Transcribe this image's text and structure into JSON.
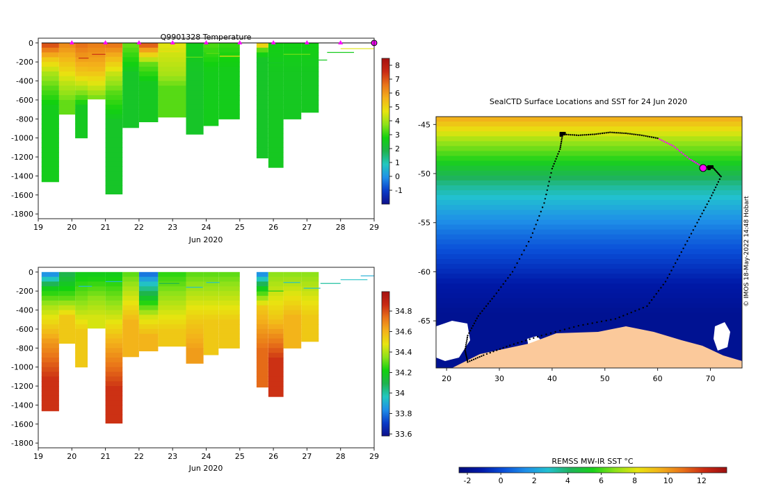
{
  "colors": {
    "temp_scale": [
      "#0d0f8a",
      "#0a3cc8",
      "#1f8fe8",
      "#22c7c0",
      "#1fb34f",
      "#12d10f",
      "#8ee219",
      "#e8e40f",
      "#f4b21a",
      "#e97419",
      "#c92a13",
      "#a51110"
    ],
    "sal_scale": [
      "#0d0f8a",
      "#0a3cc8",
      "#1f8fe8",
      "#22c7c0",
      "#1fb34f",
      "#12d10f",
      "#8ee219",
      "#e8e40f",
      "#f4b21a",
      "#e97419",
      "#c92a13",
      "#a51110"
    ],
    "sst_scale": [
      "#000a7a",
      "#0019a8",
      "#0a4fd8",
      "#1f8fe8",
      "#22c0d0",
      "#1fb35a",
      "#19d11a",
      "#8ee219",
      "#e8e40f",
      "#f2b21a",
      "#e97419",
      "#c92a13",
      "#9c0f10"
    ],
    "marker": "#ff00ff",
    "land": "#fbc99b",
    "ice": "#ffffff"
  },
  "chart_data": [
    {
      "type": "heatmap",
      "title": "Q9901328  Temperature",
      "xlabel": "Jun 2020",
      "ylabel": "",
      "x_ticks": [
        "19",
        "20",
        "21",
        "22",
        "23",
        "24",
        "25",
        "26",
        "27",
        "28",
        "29"
      ],
      "y_ticks": [
        "0",
        "-200",
        "-400",
        "-600",
        "-800",
        "-1000",
        "-1200",
        "-1400",
        "-1600",
        "-1800"
      ],
      "xlim": [
        19,
        29
      ],
      "ylim": [
        -1850,
        50
      ],
      "colorbar": {
        "ticks": [
          "-1",
          "0",
          "1",
          "2",
          "3",
          "4",
          "5",
          "6",
          "7",
          "8"
        ],
        "range": [
          -2,
          8.5
        ]
      },
      "profile_markers_day": [
        20,
        21,
        22,
        23,
        24,
        25,
        26,
        27,
        28
      ],
      "profiles": [
        {
          "x0": 19.1,
          "x1": 19.62,
          "depth": 1460,
          "layers": [
            [
              0,
              7.0
            ],
            [
              150,
              5.2
            ],
            [
              300,
              4.0
            ],
            [
              450,
              3.3
            ],
            [
              650,
              2.6
            ]
          ]
        },
        {
          "x0": 19.62,
          "x1": 20.1,
          "depth": 750,
          "layers": [
            [
              0,
              6.2
            ],
            [
              250,
              5.0
            ],
            [
              400,
              4.2
            ],
            [
              600,
              3.4
            ]
          ]
        },
        {
          "x0": 20.1,
          "x1": 20.47,
          "depth": 1000,
          "layers": [
            [
              0,
              6.6
            ],
            [
              300,
              5.2
            ],
            [
              450,
              4.0
            ],
            [
              650,
              2.5
            ]
          ]
        },
        {
          "x0": 20.47,
          "x1": 21.0,
          "depth": 590,
          "layers": [
            [
              0,
              6.4
            ],
            [
              250,
              5.5
            ],
            [
              400,
              4.6
            ],
            [
              550,
              3.6
            ]
          ]
        },
        {
          "x0": 21.0,
          "x1": 21.51,
          "depth": 1590,
          "layers": [
            [
              0,
              6.5
            ],
            [
              300,
              4.3
            ],
            [
              500,
              3.3
            ],
            [
              800,
              2.4
            ]
          ]
        },
        {
          "x0": 21.51,
          "x1": 22.0,
          "depth": 890,
          "layers": [
            [
              0,
              3.4
            ],
            [
              300,
              2.4
            ]
          ]
        },
        {
          "x0": 22.0,
          "x1": 22.57,
          "depth": 830,
          "layers": [
            [
              0,
              6.8
            ],
            [
              100,
              5.0
            ],
            [
              200,
              3.4
            ],
            [
              400,
              2.5
            ]
          ]
        },
        {
          "x0": 22.57,
          "x1": 23.4,
          "depth": 780,
          "layers": [
            [
              0,
              4.6
            ],
            [
              300,
              4.0
            ],
            [
              450,
              3.3
            ]
          ]
        },
        {
          "x0": 23.4,
          "x1": 23.92,
          "depth": 960,
          "layers": [
            [
              0,
              2.6
            ],
            [
              300,
              2.4
            ]
          ]
        },
        {
          "x0": 23.92,
          "x1": 24.37,
          "depth": 870,
          "layers": [
            [
              0,
              3.2
            ],
            [
              270,
              2.6
            ]
          ]
        },
        {
          "x0": 24.37,
          "x1": 25.0,
          "depth": 800,
          "layers": [
            [
              0,
              3.0
            ],
            [
              260,
              2.6
            ]
          ]
        },
        {
          "x0": 25.5,
          "x1": 25.85,
          "depth": 1210,
          "layers": [
            [
              0,
              5.0
            ],
            [
              60,
              3.0
            ],
            [
              140,
              2.4
            ]
          ]
        },
        {
          "x0": 25.85,
          "x1": 26.3,
          "depth": 1310,
          "layers": [
            [
              0,
              2.7
            ],
            [
              300,
              2.5
            ]
          ]
        },
        {
          "x0": 26.3,
          "x1": 26.83,
          "depth": 800,
          "layers": [
            [
              0,
              2.7
            ],
            [
              300,
              2.5
            ]
          ]
        },
        {
          "x0": 26.83,
          "x1": 27.35,
          "depth": 730,
          "layers": [
            [
              0,
              2.7
            ],
            [
              300,
              2.5
            ]
          ]
        }
      ],
      "surface_lines": [
        {
          "x0": 20.2,
          "x1": 20.5,
          "d": 160,
          "v": 7.6
        },
        {
          "x0": 20.6,
          "x1": 21.0,
          "d": 120,
          "v": 7.5
        },
        {
          "x0": 21.0,
          "x1": 21.5,
          "d": 150,
          "v": 5.4
        },
        {
          "x0": 22.6,
          "x1": 23.2,
          "d": 90,
          "v": 4.8
        },
        {
          "x0": 23.4,
          "x1": 23.9,
          "d": 150,
          "v": 3.4
        },
        {
          "x0": 24.0,
          "x1": 24.4,
          "d": 110,
          "v": 3.4
        },
        {
          "x0": 24.4,
          "x1": 25.0,
          "d": 140,
          "v": 4.8
        },
        {
          "x0": 25.5,
          "x1": 26.3,
          "d": 210,
          "v": 2.4
        },
        {
          "x0": 26.3,
          "x1": 27.1,
          "d": 120,
          "v": 3.5
        },
        {
          "x0": 27.0,
          "x1": 27.6,
          "d": 180,
          "v": 2.5
        },
        {
          "x0": 27.6,
          "x1": 28.4,
          "d": 100,
          "v": 2.6
        },
        {
          "x0": 28.0,
          "x1": 29.0,
          "d": 60,
          "v": 4.6
        }
      ]
    },
    {
      "type": "heatmap",
      "title": "",
      "xlabel": "Jun 2020",
      "ylabel": "",
      "x_ticks": [
        "19",
        "20",
        "21",
        "22",
        "23",
        "24",
        "25",
        "26",
        "27",
        "28",
        "29"
      ],
      "y_ticks": [
        "0",
        "-200",
        "-400",
        "-600",
        "-800",
        "-1000",
        "-1200",
        "-1400",
        "-1600",
        "-1800"
      ],
      "xlim": [
        19,
        29
      ],
      "ylim": [
        -1850,
        50
      ],
      "colorbar": {
        "ticks": [
          "33.6",
          "33.8",
          "34",
          "34.2",
          "34.4",
          "34.6",
          "34.8"
        ],
        "range": [
          33.58,
          34.99
        ]
      },
      "profiles": [
        {
          "x0": 19.1,
          "x1": 19.62,
          "depth": 1460,
          "layers": [
            [
              0,
              33.85
            ],
            [
              150,
              34.2
            ],
            [
              350,
              34.4
            ],
            [
              700,
              34.65
            ],
            [
              1100,
              34.85
            ]
          ]
        },
        {
          "x0": 19.62,
          "x1": 20.1,
          "depth": 750,
          "layers": [
            [
              0,
              34.1
            ],
            [
              250,
              34.3
            ],
            [
              450,
              34.55
            ]
          ]
        },
        {
          "x0": 20.1,
          "x1": 20.47,
          "depth": 1000,
          "layers": [
            [
              0,
              34.2
            ],
            [
              300,
              34.35
            ],
            [
              600,
              34.55
            ]
          ]
        },
        {
          "x0": 20.47,
          "x1": 21.0,
          "depth": 590,
          "layers": [
            [
              0,
              34.2
            ],
            [
              250,
              34.35
            ],
            [
              450,
              34.45
            ]
          ]
        },
        {
          "x0": 21.0,
          "x1": 21.51,
          "depth": 1590,
          "layers": [
            [
              0,
              34.2
            ],
            [
              300,
              34.35
            ],
            [
              700,
              34.6
            ],
            [
              1200,
              34.85
            ]
          ]
        },
        {
          "x0": 21.51,
          "x1": 22.0,
          "depth": 890,
          "layers": [
            [
              0,
              34.3
            ],
            [
              500,
              34.6
            ]
          ]
        },
        {
          "x0": 22.0,
          "x1": 22.57,
          "depth": 830,
          "layers": [
            [
              0,
              33.8
            ],
            [
              200,
              34.1
            ],
            [
              450,
              34.45
            ],
            [
              650,
              34.6
            ]
          ]
        },
        {
          "x0": 22.57,
          "x1": 23.4,
          "depth": 780,
          "layers": [
            [
              0,
              34.25
            ],
            [
              400,
              34.45
            ],
            [
              600,
              34.55
            ]
          ]
        },
        {
          "x0": 23.4,
          "x1": 23.92,
          "depth": 960,
          "layers": [
            [
              0,
              34.3
            ],
            [
              500,
              34.55
            ],
            [
              800,
              34.65
            ]
          ]
        },
        {
          "x0": 23.92,
          "x1": 24.37,
          "depth": 870,
          "layers": [
            [
              0,
              34.3
            ],
            [
              500,
              34.55
            ]
          ]
        },
        {
          "x0": 24.37,
          "x1": 25.0,
          "depth": 800,
          "layers": [
            [
              0,
              34.3
            ],
            [
              500,
              34.55
            ]
          ]
        },
        {
          "x0": 25.5,
          "x1": 25.85,
          "depth": 1210,
          "layers": [
            [
              0,
              33.85
            ],
            [
              150,
              34.2
            ],
            [
              350,
              34.55
            ],
            [
              800,
              34.75
            ]
          ]
        },
        {
          "x0": 25.85,
          "x1": 26.3,
          "depth": 1310,
          "layers": [
            [
              0,
              34.35
            ],
            [
              450,
              34.55
            ],
            [
              900,
              34.85
            ]
          ]
        },
        {
          "x0": 26.3,
          "x1": 26.83,
          "depth": 800,
          "layers": [
            [
              0,
              34.35
            ],
            [
              450,
              34.6
            ]
          ]
        },
        {
          "x0": 26.83,
          "x1": 27.35,
          "depth": 730,
          "layers": [
            [
              0,
              34.35
            ],
            [
              450,
              34.55
            ]
          ]
        }
      ],
      "surface_lines": [
        {
          "x0": 20.2,
          "x1": 20.6,
          "d": 150,
          "v": 33.95
        },
        {
          "x0": 21.0,
          "x1": 21.5,
          "d": 100,
          "v": 33.95
        },
        {
          "x0": 22.6,
          "x1": 23.2,
          "d": 120,
          "v": 34.1
        },
        {
          "x0": 23.4,
          "x1": 23.9,
          "d": 160,
          "v": 33.95
        },
        {
          "x0": 24.0,
          "x1": 24.4,
          "d": 110,
          "v": 33.95
        },
        {
          "x0": 25.5,
          "x1": 26.3,
          "d": 200,
          "v": 34.2
        },
        {
          "x0": 26.3,
          "x1": 26.8,
          "d": 110,
          "v": 33.95
        },
        {
          "x0": 26.9,
          "x1": 27.4,
          "d": 170,
          "v": 33.95
        },
        {
          "x0": 27.4,
          "x1": 28.0,
          "d": 120,
          "v": 34.0
        },
        {
          "x0": 28.0,
          "x1": 28.8,
          "d": 80,
          "v": 33.95
        },
        {
          "x0": 28.6,
          "x1": 29.0,
          "d": 40,
          "v": 33.9
        }
      ]
    },
    {
      "type": "heatmap",
      "title": "SealCTD Surface Locations and SST for 24 Jun 2020",
      "xlabel": "",
      "ylabel": "",
      "x_ticks": [
        "20",
        "30",
        "40",
        "50",
        "60",
        "70"
      ],
      "y_ticks": [
        "-45",
        "-50",
        "-55",
        "-60",
        "-65"
      ],
      "xlim": [
        18,
        76
      ],
      "ylim": [
        -69.8,
        -44.2
      ],
      "sst_bands": [
        {
          "lat": -44.2,
          "v": 9.5
        },
        {
          "lat": -46.5,
          "v": 7.0
        },
        {
          "lat": -48.5,
          "v": 5.5
        },
        {
          "lat": -51.0,
          "v": 3.5
        },
        {
          "lat": -54.0,
          "v": 1.8
        },
        {
          "lat": -56.0,
          "v": 0.8
        },
        {
          "lat": -58.0,
          "v": 0.0
        },
        {
          "lat": -61.0,
          "v": -1.2
        },
        {
          "lat": -64.0,
          "v": -1.8
        }
      ],
      "track": [
        [
          42.0,
          -46.0
        ],
        [
          45.0,
          -46.1
        ],
        [
          48.0,
          -46.0
        ],
        [
          51.0,
          -45.8
        ],
        [
          54.0,
          -45.9
        ],
        [
          57.0,
          -46.1
        ],
        [
          60.0,
          -46.4
        ],
        [
          63.0,
          -47.2
        ],
        [
          66.0,
          -48.5
        ],
        [
          68.5,
          -49.3
        ],
        [
          70.5,
          -49.4
        ],
        [
          72.0,
          -50.3
        ],
        [
          70.0,
          -52.5
        ],
        [
          67.5,
          -55.0
        ],
        [
          64.5,
          -58.0
        ],
        [
          61.5,
          -61.0
        ],
        [
          58.0,
          -63.5
        ],
        [
          52.0,
          -64.8
        ],
        [
          45.0,
          -65.5
        ],
        [
          38.0,
          -66.5
        ],
        [
          32.0,
          -67.5
        ],
        [
          27.0,
          -68.5
        ],
        [
          24.0,
          -69.2
        ],
        [
          23.5,
          -68.0
        ],
        [
          24.0,
          -66.5
        ],
        [
          26.0,
          -64.5
        ],
        [
          29.0,
          -62.5
        ],
        [
          32.5,
          -60.0
        ],
        [
          36.0,
          -56.5
        ],
        [
          38.5,
          -53.0
        ],
        [
          40.0,
          -49.5
        ],
        [
          41.5,
          -47.5
        ],
        [
          42.0,
          -46.0
        ]
      ],
      "colorbar": {
        "label": "REMSS MW-IR SST °C",
        "ticks": [
          "-2",
          "0",
          "2",
          "4",
          "6",
          "8",
          "10",
          "12"
        ],
        "range": [
          -2.5,
          13.5
        ]
      },
      "credit": "© IMOS 18-May-2022 14:48 Hobart"
    }
  ]
}
